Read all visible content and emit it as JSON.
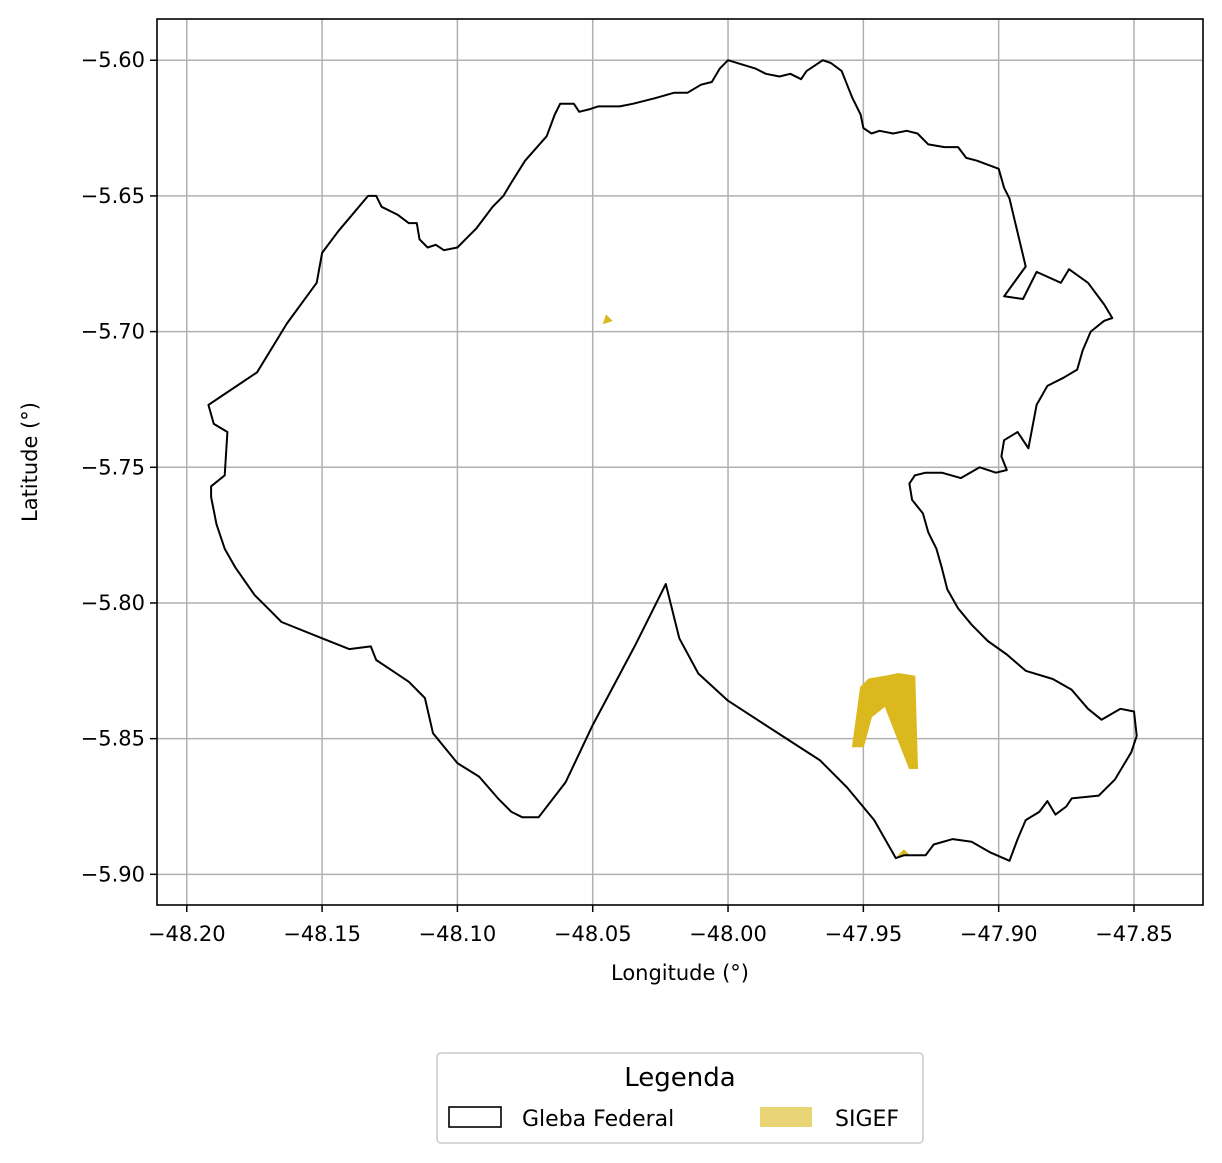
{
  "chart_data": {
    "type": "map",
    "xlabel": "Longitude (°)",
    "ylabel": "Latitude (°)",
    "xlim": [
      -48.211,
      -47.8245
    ],
    "ylim": [
      -5.9113,
      -5.5848
    ],
    "grid": true,
    "x_ticks": [
      -48.2,
      -48.15,
      -48.1,
      -48.05,
      -48.0,
      -47.95,
      -47.9,
      -47.85
    ],
    "x_tick_labels": [
      "−48.20",
      "−48.15",
      "−48.10",
      "−48.05",
      "−48.00",
      "−47.95",
      "−47.90",
      "−47.85"
    ],
    "y_ticks": [
      -5.6,
      -5.65,
      -5.7,
      -5.75,
      -5.8,
      -5.85,
      -5.9
    ],
    "y_tick_labels": [
      "−5.60",
      "−5.65",
      "−5.70",
      "−5.75",
      "−5.80",
      "−5.85",
      "−5.90"
    ],
    "legend": {
      "title": "Legenda",
      "placement": "bottom-center",
      "entries": [
        {
          "name": "Gleba Federal",
          "style": "outline"
        },
        {
          "name": "SIGEF",
          "style": "fill"
        }
      ]
    },
    "series": [
      {
        "name": "Gleba Federal",
        "kind": "outline",
        "color": "#000000",
        "coords": [
          [
            -48.0,
            -5.6
          ],
          [
            -47.99,
            -5.603
          ],
          [
            -47.986,
            -5.605
          ],
          [
            -47.981,
            -5.606
          ],
          [
            -47.977,
            -5.605
          ],
          [
            -47.973,
            -5.607
          ],
          [
            -47.971,
            -5.604
          ],
          [
            -47.968,
            -5.602
          ],
          [
            -47.965,
            -5.6
          ],
          [
            -47.962,
            -5.601
          ],
          [
            -47.958,
            -5.604
          ],
          [
            -47.956,
            -5.609
          ],
          [
            -47.954,
            -5.614
          ],
          [
            -47.951,
            -5.62
          ],
          [
            -47.95,
            -5.625
          ],
          [
            -47.947,
            -5.627
          ],
          [
            -47.944,
            -5.626
          ],
          [
            -47.939,
            -5.627
          ],
          [
            -47.934,
            -5.626
          ],
          [
            -47.93,
            -5.627
          ],
          [
            -47.926,
            -5.631
          ],
          [
            -47.92,
            -5.632
          ],
          [
            -47.915,
            -5.632
          ],
          [
            -47.912,
            -5.636
          ],
          [
            -47.908,
            -5.637
          ],
          [
            -47.9,
            -5.64
          ],
          [
            -47.898,
            -5.647
          ],
          [
            -47.896,
            -5.651
          ],
          [
            -47.89,
            -5.676
          ],
          [
            -47.898,
            -5.687
          ],
          [
            -47.891,
            -5.688
          ],
          [
            -47.886,
            -5.678
          ],
          [
            -47.877,
            -5.682
          ],
          [
            -47.874,
            -5.677
          ],
          [
            -47.867,
            -5.682
          ],
          [
            -47.861,
            -5.69
          ],
          [
            -47.858,
            -5.695
          ],
          [
            -47.861,
            -5.696
          ],
          [
            -47.866,
            -5.7
          ],
          [
            -47.869,
            -5.707
          ],
          [
            -47.871,
            -5.714
          ],
          [
            -47.876,
            -5.717
          ],
          [
            -47.882,
            -5.72
          ],
          [
            -47.886,
            -5.727
          ],
          [
            -47.889,
            -5.743
          ],
          [
            -47.893,
            -5.737
          ],
          [
            -47.898,
            -5.74
          ],
          [
            -47.899,
            -5.746
          ],
          [
            -47.897,
            -5.751
          ],
          [
            -47.901,
            -5.752
          ],
          [
            -47.907,
            -5.75
          ],
          [
            -47.914,
            -5.754
          ],
          [
            -47.921,
            -5.752
          ],
          [
            -47.927,
            -5.752
          ],
          [
            -47.931,
            -5.753
          ],
          [
            -47.933,
            -5.756
          ],
          [
            -47.932,
            -5.762
          ],
          [
            -47.928,
            -5.767
          ],
          [
            -47.926,
            -5.774
          ],
          [
            -47.923,
            -5.78
          ],
          [
            -47.921,
            -5.787
          ],
          [
            -47.919,
            -5.795
          ],
          [
            -47.915,
            -5.802
          ],
          [
            -47.91,
            -5.808
          ],
          [
            -47.904,
            -5.814
          ],
          [
            -47.897,
            -5.819
          ],
          [
            -47.89,
            -5.825
          ],
          [
            -47.88,
            -5.828
          ],
          [
            -47.873,
            -5.832
          ],
          [
            -47.867,
            -5.839
          ],
          [
            -47.862,
            -5.843
          ],
          [
            -47.855,
            -5.839
          ],
          [
            -47.85,
            -5.84
          ],
          [
            -47.849,
            -5.849
          ],
          [
            -47.851,
            -5.855
          ],
          [
            -47.857,
            -5.865
          ],
          [
            -47.863,
            -5.871
          ],
          [
            -47.873,
            -5.872
          ],
          [
            -47.875,
            -5.875
          ],
          [
            -47.879,
            -5.878
          ],
          [
            -47.882,
            -5.873
          ],
          [
            -47.885,
            -5.877
          ],
          [
            -47.89,
            -5.88
          ],
          [
            -47.893,
            -5.887
          ],
          [
            -47.896,
            -5.895
          ],
          [
            -47.903,
            -5.892
          ],
          [
            -47.91,
            -5.888
          ],
          [
            -47.917,
            -5.887
          ],
          [
            -47.924,
            -5.889
          ],
          [
            -47.927,
            -5.893
          ],
          [
            -47.93,
            -5.893
          ],
          [
            -47.935,
            -5.893
          ],
          [
            -47.938,
            -5.894
          ],
          [
            -47.946,
            -5.88
          ],
          [
            -47.956,
            -5.868
          ],
          [
            -47.966,
            -5.858
          ],
          [
            -47.98,
            -5.849
          ],
          [
            -48.0,
            -5.836
          ],
          [
            -48.011,
            -5.826
          ],
          [
            -48.018,
            -5.813
          ],
          [
            -48.023,
            -5.793
          ],
          [
            -48.034,
            -5.815
          ],
          [
            -48.05,
            -5.845
          ],
          [
            -48.06,
            -5.866
          ],
          [
            -48.07,
            -5.879
          ],
          [
            -48.076,
            -5.879
          ],
          [
            -48.08,
            -5.877
          ],
          [
            -48.085,
            -5.872
          ],
          [
            -48.092,
            -5.864
          ],
          [
            -48.1,
            -5.859
          ],
          [
            -48.109,
            -5.848
          ],
          [
            -48.112,
            -5.835
          ],
          [
            -48.118,
            -5.829
          ],
          [
            -48.13,
            -5.821
          ],
          [
            -48.132,
            -5.816
          ],
          [
            -48.14,
            -5.817
          ],
          [
            -48.15,
            -5.813
          ],
          [
            -48.165,
            -5.807
          ],
          [
            -48.169,
            -5.803
          ],
          [
            -48.175,
            -5.797
          ],
          [
            -48.182,
            -5.787
          ],
          [
            -48.186,
            -5.78
          ],
          [
            -48.189,
            -5.771
          ],
          [
            -48.191,
            -5.761
          ],
          [
            -48.191,
            -5.757
          ],
          [
            -48.186,
            -5.753
          ],
          [
            -48.185,
            -5.737
          ],
          [
            -48.19,
            -5.734
          ],
          [
            -48.192,
            -5.727
          ],
          [
            -48.186,
            -5.723
          ],
          [
            -48.174,
            -5.715
          ],
          [
            -48.163,
            -5.697
          ],
          [
            -48.152,
            -5.682
          ],
          [
            -48.15,
            -5.671
          ],
          [
            -48.144,
            -5.663
          ],
          [
            -48.133,
            -5.65
          ],
          [
            -48.13,
            -5.65
          ],
          [
            -48.128,
            -5.654
          ],
          [
            -48.122,
            -5.657
          ],
          [
            -48.118,
            -5.66
          ],
          [
            -48.115,
            -5.66
          ],
          [
            -48.114,
            -5.666
          ],
          [
            -48.111,
            -5.669
          ],
          [
            -48.108,
            -5.668
          ],
          [
            -48.105,
            -5.67
          ],
          [
            -48.1,
            -5.669
          ],
          [
            -48.096,
            -5.665
          ],
          [
            -48.093,
            -5.662
          ],
          [
            -48.09,
            -5.658
          ],
          [
            -48.087,
            -5.654
          ],
          [
            -48.083,
            -5.65
          ],
          [
            -48.08,
            -5.645
          ],
          [
            -48.075,
            -5.637
          ],
          [
            -48.067,
            -5.628
          ],
          [
            -48.064,
            -5.62
          ],
          [
            -48.062,
            -5.616
          ],
          [
            -48.057,
            -5.616
          ],
          [
            -48.055,
            -5.619
          ],
          [
            -48.051,
            -5.618
          ],
          [
            -48.048,
            -5.617
          ],
          [
            -48.04,
            -5.617
          ],
          [
            -48.035,
            -5.616
          ],
          [
            -48.027,
            -5.614
          ],
          [
            -48.02,
            -5.612
          ],
          [
            -48.015,
            -5.612
          ],
          [
            -48.01,
            -5.609
          ],
          [
            -48.006,
            -5.608
          ],
          [
            -48.003,
            -5.603
          ],
          [
            -48.0,
            -5.6
          ]
        ]
      },
      {
        "name": "SIGEF",
        "kind": "fill",
        "color": "#dbb81d",
        "polygons": [
          [
            [
              -47.954,
              -5.853
            ],
            [
              -47.951,
              -5.831
            ],
            [
              -47.948,
              -5.828
            ],
            [
              -47.942,
              -5.827
            ],
            [
              -47.937,
              -5.826
            ],
            [
              -47.931,
              -5.827
            ],
            [
              -47.93,
              -5.861
            ],
            [
              -47.933,
              -5.861
            ],
            [
              -47.942,
              -5.838
            ],
            [
              -47.947,
              -5.842
            ],
            [
              -47.95,
              -5.853
            ]
          ],
          [
            [
              -48.046,
              -5.697
            ],
            [
              -48.045,
              -5.694
            ],
            [
              -48.043,
              -5.696
            ]
          ],
          [
            [
              -47.937,
              -5.893
            ],
            [
              -47.935,
              -5.891
            ],
            [
              -47.933,
              -5.893
            ]
          ]
        ]
      }
    ]
  },
  "colors": {
    "gleba": "#000000",
    "sigef": "#dbb81d",
    "sigef_legend": "#e9d475",
    "grid": "#b0b0b0"
  }
}
